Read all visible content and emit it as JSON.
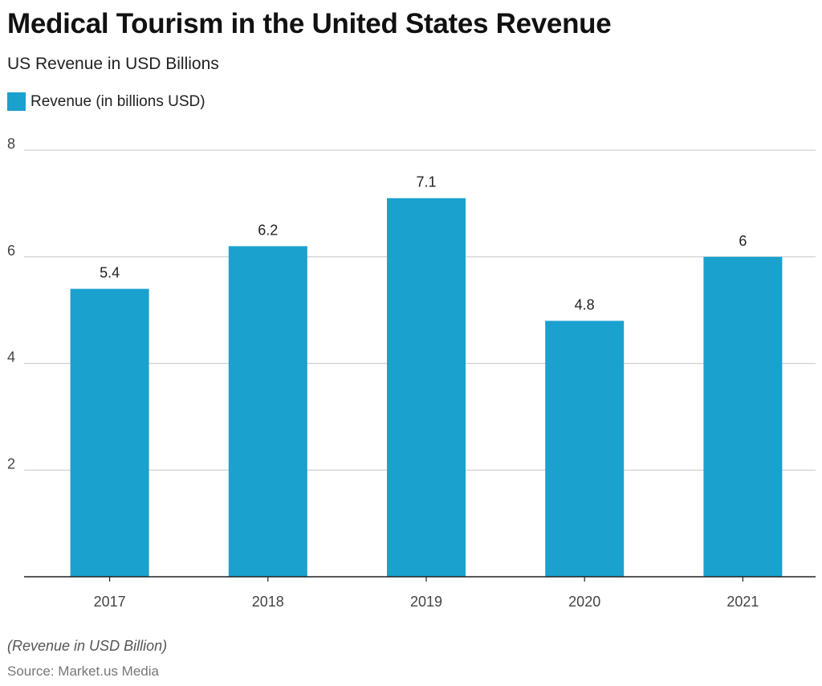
{
  "chart_data": {
    "type": "bar",
    "title": "Medical Tourism in the United States Revenue",
    "subtitle": "US Revenue in USD Billions",
    "categories": [
      "2017",
      "2018",
      "2019",
      "2020",
      "2021"
    ],
    "series": [
      {
        "name": "Revenue (in billions USD)",
        "values": [
          5.4,
          6.2,
          7.1,
          4.8,
          6
        ],
        "color": "#1aa1ce"
      }
    ],
    "data_labels": [
      "5.4",
      "6.2",
      "7.1",
      "4.8",
      "6"
    ],
    "y_ticks": [
      2,
      4,
      6,
      8
    ],
    "ylim": [
      0,
      8
    ],
    "grid": true,
    "legend_position": "top-left",
    "xlabel": "",
    "ylabel": ""
  },
  "footer": {
    "note": "(Revenue in USD Billion)",
    "source": "Source: Market.us Media"
  }
}
